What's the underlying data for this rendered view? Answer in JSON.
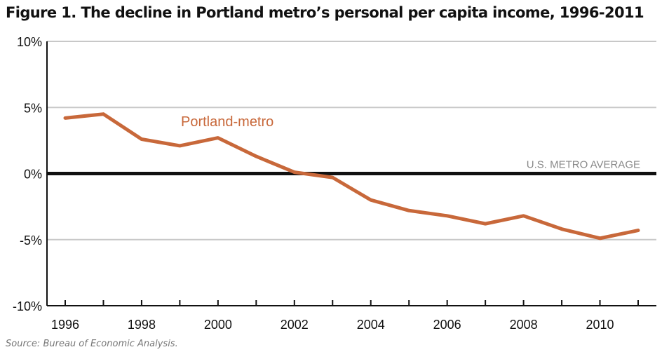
{
  "chart_data": {
    "type": "line",
    "title": "Figure 1. The decline in Portland metro’s personal per capita income, 1996-2011",
    "source": "Source: Bureau of Economic Analysis.",
    "xlabel": "",
    "ylabel": "",
    "x": [
      1996,
      1997,
      1998,
      1999,
      2000,
      2001,
      2002,
      2003,
      2004,
      2005,
      2006,
      2007,
      2008,
      2009,
      2010,
      2011
    ],
    "xticks": [
      "1996",
      "1998",
      "2000",
      "2002",
      "2004",
      "2006",
      "2008",
      "2010"
    ],
    "ylim": [
      -10,
      10
    ],
    "yticks": [
      10,
      5,
      0,
      -5,
      -10
    ],
    "ytick_labels": [
      "10%",
      "5%",
      "0%",
      "-5%",
      "-10%"
    ],
    "grid": true,
    "series": [
      {
        "name": "Portland-metro",
        "color": "#c8683a",
        "values": [
          4.2,
          4.5,
          2.6,
          2.1,
          2.7,
          1.3,
          0.1,
          -0.3,
          -2.0,
          -2.8,
          -3.2,
          -3.8,
          -3.2,
          -4.2,
          -4.9,
          -4.3
        ]
      }
    ],
    "reference_line": {
      "label": "U.S. METRO AVERAGE",
      "value": 0,
      "color": "#111111"
    }
  }
}
